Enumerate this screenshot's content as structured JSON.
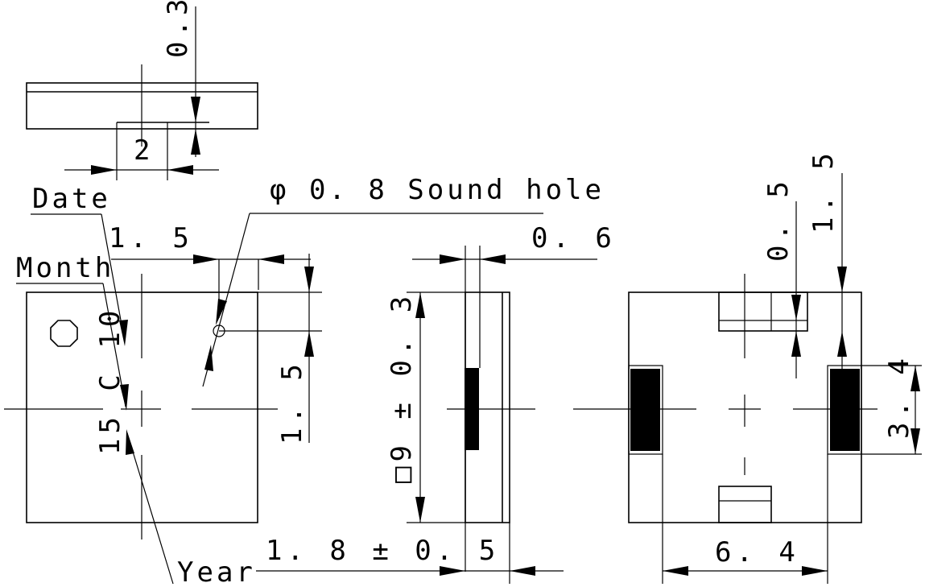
{
  "diagram": {
    "top_view": {
      "thickness": "0.3",
      "pad_width": "2"
    },
    "front_view": {
      "date_label": "Date",
      "month_label": "Month",
      "year_label": "Year",
      "marking_text": "15 C 10",
      "sound_hole_label": "φ 0. 8  Sound hole",
      "hole_offset_x": "1. 5",
      "hole_offset_y": "1. 5"
    },
    "side_view": {
      "body_size": "□9 ± 0. 3",
      "lead_thickness": "0. 6",
      "height": "1. 8 ± 0. 5"
    },
    "bottom_view": {
      "pad_spacing": "6. 4",
      "pad_height": "3. 4",
      "tab_width": "0. 5",
      "tab_offset": "1. 5"
    }
  }
}
